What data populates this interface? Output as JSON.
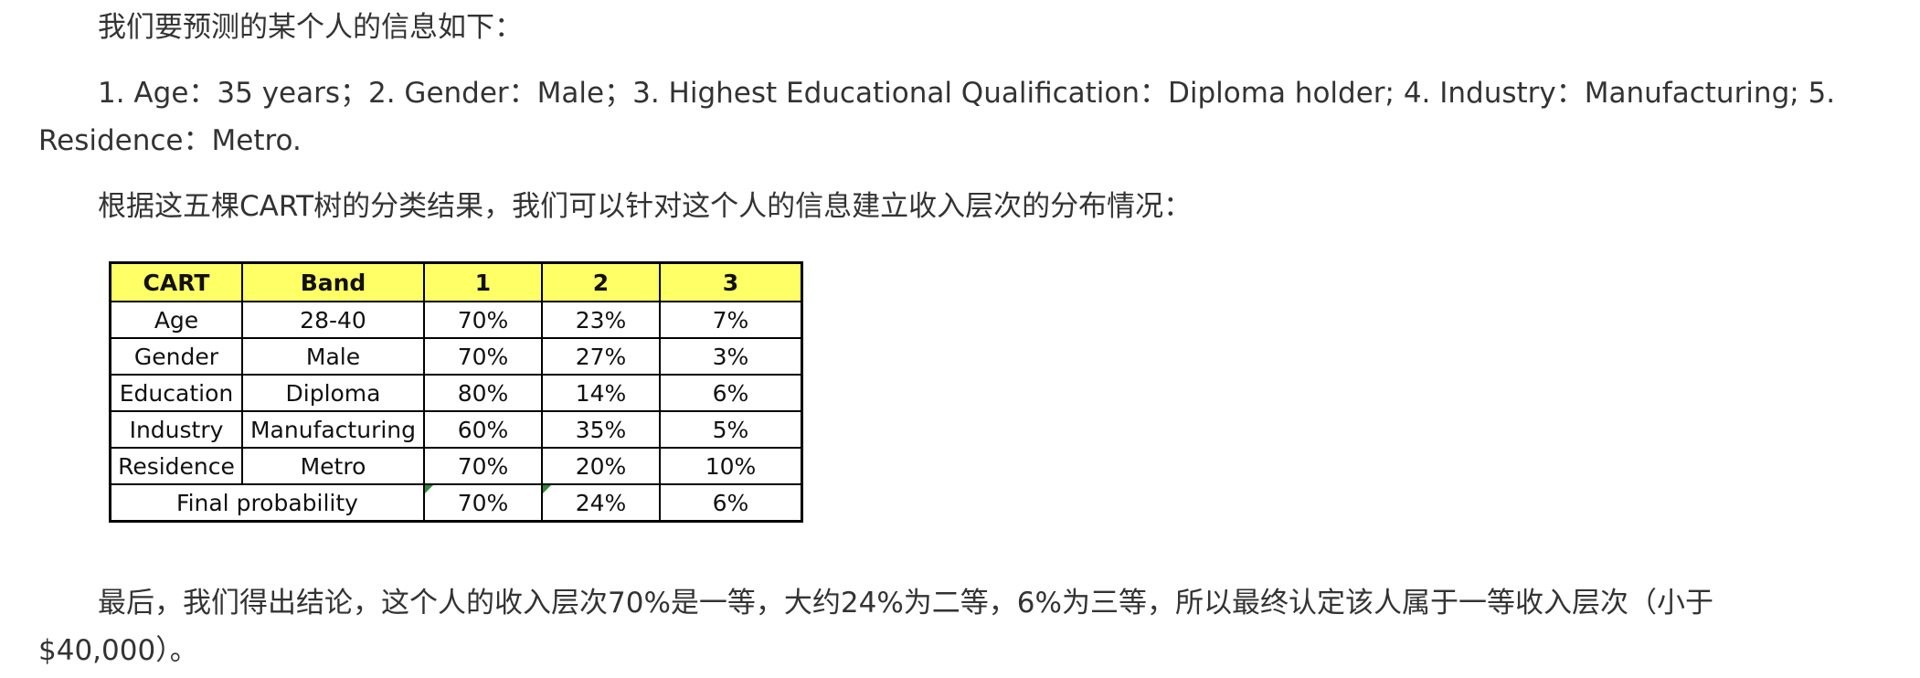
{
  "paragraphs": {
    "intro": "我们要预测的某个人的信息如下：",
    "attributes_line1": "1. Age：35 years；2. Gender：Male；3. Highest Educational Qualification：Diploma holder; 4. Industry：Manufacturing; 5.",
    "attributes_line2": "Residence：Metro.",
    "lead": "根据这五棵CART树的分类结果，我们可以针对这个人的信息建立收入层次的分布情况：",
    "conclusion_line1": "最后，我们得出结论，这个人的收入层次70%是一等，大约24%为二等，6%为三等，所以最终认定该人属于一等收入层次（小于",
    "conclusion_line2": "$40,000）。"
  },
  "table": {
    "headers": [
      "CART",
      "Band",
      "1",
      "2",
      "3"
    ],
    "rows": [
      [
        "Age",
        "28-40",
        "70%",
        "23%",
        "7%"
      ],
      [
        "Gender",
        "Male",
        "70%",
        "27%",
        "3%"
      ],
      [
        "Education",
        "Diploma",
        "80%",
        "14%",
        "6%"
      ],
      [
        "Industry",
        "Manufacturing",
        "60%",
        "35%",
        "5%"
      ],
      [
        "Residence",
        "Metro",
        "70%",
        "20%",
        "10%"
      ]
    ],
    "final": {
      "label": "Final probability",
      "values": [
        "70%",
        "24%",
        "6%"
      ]
    },
    "header_color": "#ffff66",
    "marker_color": "#2e8b3a"
  }
}
